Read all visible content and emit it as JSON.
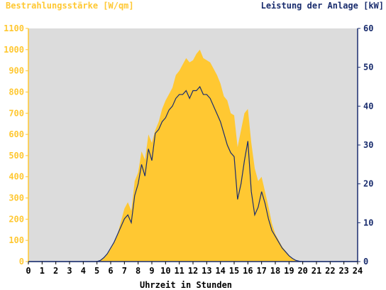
{
  "chart_data": {
    "type": "area",
    "ylabel_left": "Bestrahlungsstärke [W/qm]",
    "ylabel_right": "Leistung der Anlage [kW]",
    "xlabel": "Uhrzeit in Stunden",
    "xlim": [
      0,
      24
    ],
    "ylim_left": [
      0,
      1100
    ],
    "ylim_right": [
      0,
      60
    ],
    "x_ticks": [
      "0",
      "1",
      "2",
      "3",
      "4",
      "5",
      "6",
      "7",
      "8",
      "9",
      "10",
      "11",
      "12",
      "13",
      "14",
      "15",
      "16",
      "17",
      "18",
      "19",
      "20",
      "21",
      "22",
      "23",
      "24"
    ],
    "y_ticks_left": [
      "0",
      "100",
      "200",
      "300",
      "400",
      "500",
      "600",
      "700",
      "800",
      "900",
      "1000",
      "1100"
    ],
    "y_ticks_right": [
      "0",
      "10",
      "20",
      "30",
      "40",
      "50",
      "60"
    ],
    "grid": false,
    "background": "#dcdcdc",
    "series": [
      {
        "name": "Bestrahlungsstärke",
        "axis": "left",
        "style": "area",
        "color": "#ffc832",
        "x": [
          0,
          5.0,
          5.25,
          5.5,
          5.75,
          6.0,
          6.25,
          6.5,
          6.75,
          7.0,
          7.25,
          7.5,
          7.75,
          8.0,
          8.25,
          8.5,
          8.75,
          9.0,
          9.25,
          9.5,
          9.75,
          10.0,
          10.25,
          10.5,
          10.75,
          11.0,
          11.25,
          11.5,
          11.75,
          12.0,
          12.25,
          12.5,
          12.75,
          13.0,
          13.25,
          13.5,
          13.75,
          14.0,
          14.25,
          14.5,
          14.75,
          15.0,
          15.25,
          15.5,
          15.75,
          16.0,
          16.25,
          16.5,
          16.75,
          17.0,
          17.25,
          17.5,
          17.75,
          18.0,
          18.25,
          18.5,
          18.75,
          19.0,
          19.25,
          19.5,
          19.75,
          20.0,
          20.25,
          24
        ],
        "y": [
          0,
          0,
          5,
          15,
          35,
          60,
          90,
          130,
          190,
          250,
          280,
          240,
          380,
          420,
          520,
          480,
          600,
          560,
          620,
          660,
          720,
          760,
          790,
          820,
          880,
          900,
          930,
          960,
          940,
          950,
          980,
          1000,
          960,
          950,
          940,
          910,
          880,
          840,
          780,
          760,
          700,
          690,
          540,
          620,
          700,
          720,
          560,
          440,
          380,
          400,
          330,
          260,
          180,
          130,
          100,
          70,
          50,
          30,
          15,
          5,
          2,
          0,
          0,
          0
        ]
      },
      {
        "name": "Leistung der Anlage",
        "axis": "right",
        "style": "line",
        "color": "#1a2d6e",
        "x": [
          0,
          5.0,
          5.25,
          5.5,
          5.75,
          6.0,
          6.25,
          6.5,
          6.75,
          7.0,
          7.25,
          7.5,
          7.75,
          8.0,
          8.25,
          8.5,
          8.75,
          9.0,
          9.25,
          9.5,
          9.75,
          10.0,
          10.25,
          10.5,
          10.75,
          11.0,
          11.25,
          11.5,
          11.75,
          12.0,
          12.25,
          12.5,
          12.75,
          13.0,
          13.25,
          13.5,
          13.75,
          14.0,
          14.25,
          14.5,
          14.75,
          15.0,
          15.25,
          15.5,
          15.75,
          16.0,
          16.25,
          16.5,
          16.75,
          17.0,
          17.25,
          17.5,
          17.75,
          18.0,
          18.25,
          18.5,
          18.75,
          19.0,
          19.25,
          19.5,
          19.75,
          20.0,
          20.25,
          24
        ],
        "y": [
          0,
          0,
          0.3,
          1,
          2,
          3.5,
          5,
          7,
          9,
          11,
          12,
          10,
          17,
          20,
          25,
          22,
          29,
          26,
          33,
          34,
          36,
          37,
          39,
          40,
          42,
          43,
          43,
          44,
          42,
          44,
          44,
          45,
          43,
          43,
          42,
          40,
          38,
          36,
          33,
          30,
          28,
          27,
          16,
          20,
          26,
          31,
          18,
          12,
          14,
          18,
          15,
          11,
          8,
          6.5,
          5,
          3.5,
          2.5,
          1.5,
          0.8,
          0.3,
          0.1,
          0,
          0,
          0
        ]
      }
    ]
  }
}
